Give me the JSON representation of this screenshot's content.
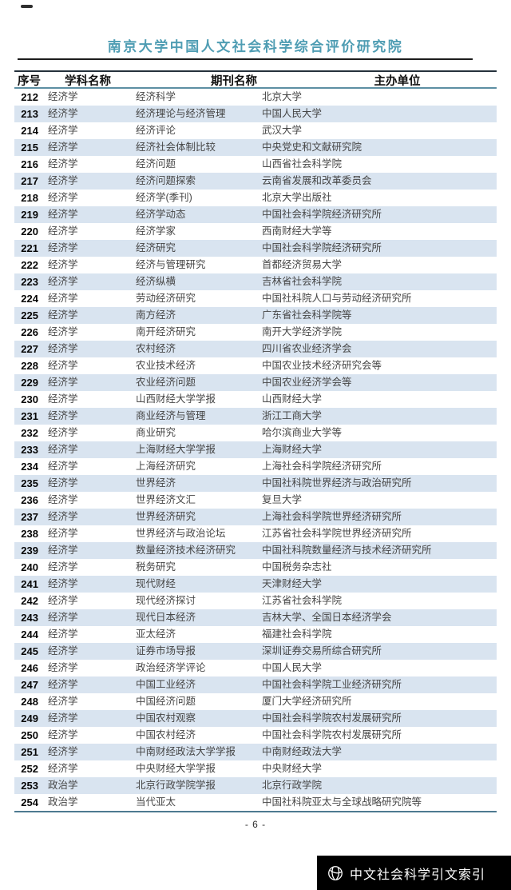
{
  "page": {
    "title": "南京大学中国人文社会科学综合评价研究院",
    "page_number": "- 6 -"
  },
  "table": {
    "columns": [
      "序号",
      "学科名称",
      "期刊名称",
      "主办单位"
    ],
    "rows": [
      [
        "212",
        "经济学",
        "经济科学",
        "北京大学"
      ],
      [
        "213",
        "经济学",
        "经济理论与经济管理",
        "中国人民大学"
      ],
      [
        "214",
        "经济学",
        "经济评论",
        "武汉大学"
      ],
      [
        "215",
        "经济学",
        "经济社会体制比较",
        "中央党史和文献研究院"
      ],
      [
        "216",
        "经济学",
        "经济问题",
        "山西省社会科学院"
      ],
      [
        "217",
        "经济学",
        "经济问题探索",
        "云南省发展和改革委员会"
      ],
      [
        "218",
        "经济学",
        "经济学(季刊)",
        "北京大学出版社"
      ],
      [
        "219",
        "经济学",
        "经济学动态",
        "中国社会科学院经济研究所"
      ],
      [
        "220",
        "经济学",
        "经济学家",
        "西南财经大学等"
      ],
      [
        "221",
        "经济学",
        "经济研究",
        "中国社会科学院经济研究所"
      ],
      [
        "222",
        "经济学",
        "经济与管理研究",
        "首都经济贸易大学"
      ],
      [
        "223",
        "经济学",
        "经济纵横",
        "吉林省社会科学院"
      ],
      [
        "224",
        "经济学",
        "劳动经济研究",
        "中国社科院人口与劳动经济研究所"
      ],
      [
        "225",
        "经济学",
        "南方经济",
        "广东省社会科学院等"
      ],
      [
        "226",
        "经济学",
        "南开经济研究",
        "南开大学经济学院"
      ],
      [
        "227",
        "经济学",
        "农村经济",
        "四川省农业经济学会"
      ],
      [
        "228",
        "经济学",
        "农业技术经济",
        "中国农业技术经济研究会等"
      ],
      [
        "229",
        "经济学",
        "农业经济问题",
        "中国农业经济学会等"
      ],
      [
        "230",
        "经济学",
        "山西财经大学学报",
        "山西财经大学"
      ],
      [
        "231",
        "经济学",
        "商业经济与管理",
        "浙江工商大学"
      ],
      [
        "232",
        "经济学",
        "商业研究",
        "哈尔滨商业大学等"
      ],
      [
        "233",
        "经济学",
        "上海财经大学学报",
        "上海财经大学"
      ],
      [
        "234",
        "经济学",
        "上海经济研究",
        "上海社会科学院经济研究所"
      ],
      [
        "235",
        "经济学",
        "世界经济",
        "中国社科院世界经济与政治研究所"
      ],
      [
        "236",
        "经济学",
        "世界经济文汇",
        "复旦大学"
      ],
      [
        "237",
        "经济学",
        "世界经济研究",
        "上海社会科学院世界经济研究所"
      ],
      [
        "238",
        "经济学",
        "世界经济与政治论坛",
        "江苏省社会科学院世界经济研究所"
      ],
      [
        "239",
        "经济学",
        "数量经济技术经济研究",
        "中国社科院数量经济与技术经济研究所"
      ],
      [
        "240",
        "经济学",
        "税务研究",
        "中国税务杂志社"
      ],
      [
        "241",
        "经济学",
        "现代财经",
        "天津财经大学"
      ],
      [
        "242",
        "经济学",
        "现代经济探讨",
        "江苏省社会科学院"
      ],
      [
        "243",
        "经济学",
        "现代日本经济",
        "吉林大学、全国日本经济学会"
      ],
      [
        "244",
        "经济学",
        "亚太经济",
        "福建社会科学院"
      ],
      [
        "245",
        "经济学",
        "证券市场导报",
        "深圳证券交易所综合研究所"
      ],
      [
        "246",
        "经济学",
        "政治经济学评论",
        "中国人民大学"
      ],
      [
        "247",
        "经济学",
        "中国工业经济",
        "中国社会科学院工业经济研究所"
      ],
      [
        "248",
        "经济学",
        "中国经济问题",
        "厦门大学经济研究所"
      ],
      [
        "249",
        "经济学",
        "中国农村观察",
        "中国社会科学院农村发展研究所"
      ],
      [
        "250",
        "经济学",
        "中国农村经济",
        "中国社会科学院农村发展研究所"
      ],
      [
        "251",
        "经济学",
        "中南财经政法大学学报",
        "中南财经政法大学"
      ],
      [
        "252",
        "经济学",
        "中央财经大学学报",
        "中央财经大学"
      ],
      [
        "253",
        "政治学",
        "北京行政学院学报",
        "北京行政学院"
      ],
      [
        "254",
        "政治学",
        "当代亚太",
        "中国社科院亚太与全球战略研究院等"
      ]
    ]
  },
  "footer": {
    "brand": "中文社会科学引文索引",
    "logo_icon": "cssci-globe-icon"
  },
  "colors": {
    "title": "#4f9db3",
    "row_alt": "#d9e4f0",
    "header_rule": "#5d8fa3",
    "table_top_rule": "#25313c",
    "table_bottom_rule": "#4e7a90",
    "footer_bg": "#000000",
    "footer_text": "#ffffff"
  }
}
